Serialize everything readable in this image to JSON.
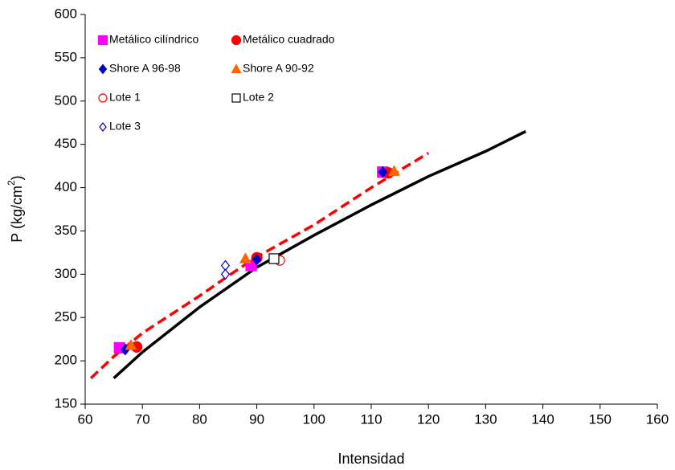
{
  "chart_data": {
    "type": "scatter",
    "xlabel": "Intensidad",
    "ylabel": "P (kg/cm",
    "ylabel_sup": "2",
    "ylabel_end": ")",
    "xlim": [
      60,
      160
    ],
    "xticks": [
      60,
      70,
      80,
      90,
      100,
      110,
      120,
      130,
      140,
      150,
      160
    ],
    "ylim": [
      150,
      600
    ],
    "yticks": [
      150,
      200,
      250,
      300,
      350,
      400,
      450,
      500,
      550,
      600
    ],
    "grid": false,
    "legend": "top-left",
    "series": [
      {
        "name": "Metálico cilíndrico",
        "color": "#ff00ff",
        "marker": "square",
        "filled": true,
        "x": [
          66,
          89,
          112
        ],
        "y": [
          215,
          310,
          418
        ]
      },
      {
        "name": "Metálico cuadrado",
        "color": "#ff0000",
        "marker": "circle",
        "filled": true,
        "x": [
          69,
          90,
          113
        ],
        "y": [
          216,
          319,
          417
        ]
      },
      {
        "name": "Shore A 96-98",
        "color": "#0000cc",
        "marker": "diamond",
        "filled": true,
        "x": [
          67,
          90,
          112
        ],
        "y": [
          213,
          317,
          418
        ]
      },
      {
        "name": "Shore A 90-92",
        "color": "#ff6600",
        "marker": "triangle",
        "filled": true,
        "x": [
          68,
          88,
          114
        ],
        "y": [
          218,
          318,
          419
        ]
      },
      {
        "name": "Lote 1",
        "color": "#ff0000",
        "marker": "circle",
        "filled": false,
        "x": [
          94
        ],
        "y": [
          316
        ]
      },
      {
        "name": "Lote 2",
        "color": "#000000",
        "marker": "square",
        "filled": false,
        "x": [
          93
        ],
        "y": [
          318
        ]
      },
      {
        "name": "Lote 3",
        "color": "#0000cc",
        "marker": "diamond",
        "filled": false,
        "x": [
          84.5,
          84.5
        ],
        "y": [
          310,
          300
        ]
      }
    ],
    "curves": [
      {
        "color": "#000000",
        "dashed": false,
        "x": [
          65,
          70,
          80,
          90,
          100,
          110,
          120,
          130,
          137
        ],
        "y": [
          180,
          210,
          262,
          308,
          345,
          380,
          413,
          442,
          465
        ]
      },
      {
        "color": "#ff0000",
        "dashed": true,
        "x": [
          61,
          65,
          70,
          80,
          85,
          90,
          100,
          110,
          120
        ],
        "y": [
          180,
          205,
          232,
          275,
          298,
          320,
          357,
          400,
          440
        ]
      }
    ]
  }
}
